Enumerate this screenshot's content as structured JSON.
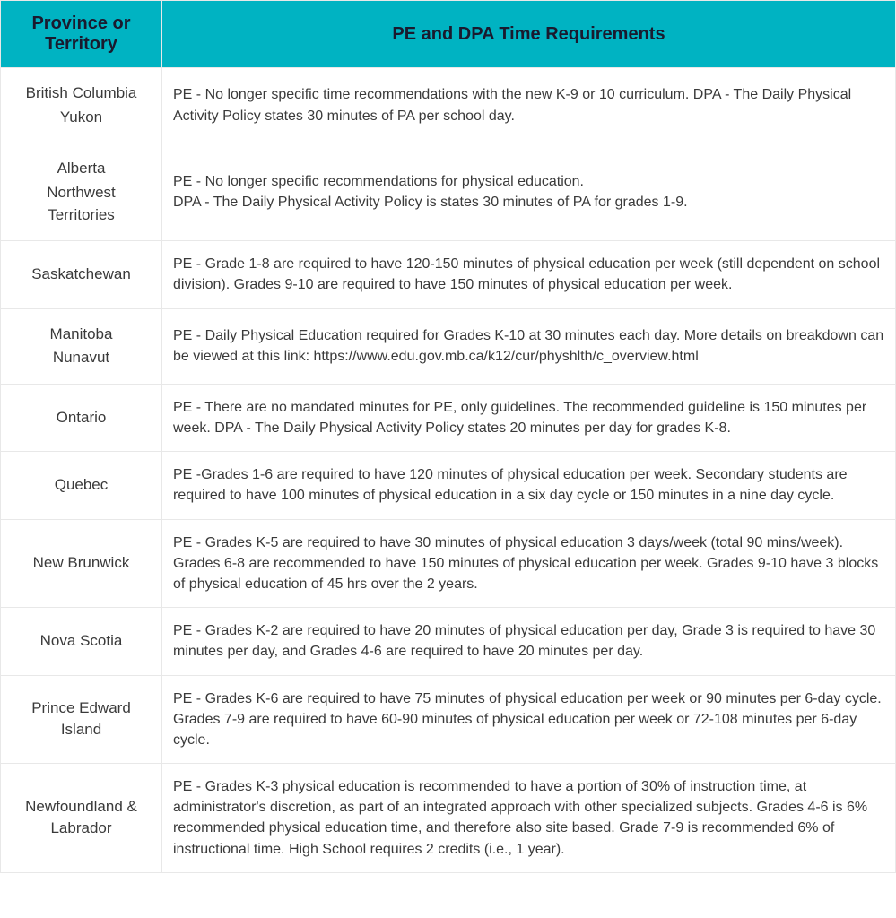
{
  "table": {
    "header_bg": "#00b3c2",
    "header_text_color": "#1a1a2e",
    "border_color": "#e8e8e8",
    "cell_text_color": "#3a3a3a",
    "columns": [
      "Province or Territory",
      "PE and DPA Time Requirements"
    ],
    "rows": [
      {
        "province_lines": [
          "British Columbia",
          "Yukon"
        ],
        "requirements": "PE - No longer specific time recommendations with the new K-9 or 10 curriculum. DPA - The Daily Physical Activity Policy states 30 minutes of PA per school day."
      },
      {
        "province_lines": [
          "Alberta",
          "Northwest Territories"
        ],
        "requirements": "PE - No longer specific recommendations for physical education.\nDPA - The Daily Physical Activity Policy is states 30 minutes of PA for grades 1-9."
      },
      {
        "province_lines": [
          "Saskatchewan"
        ],
        "requirements": "PE - Grade 1-8 are required to have 120-150 minutes of physical education per week (still dependent on school division). Grades 9-10 are required to have 150 minutes of physical education per week."
      },
      {
        "province_lines": [
          "Manitoba",
          "Nunavut"
        ],
        "requirements": "PE - Daily Physical Education required for Grades K-10 at 30 minutes each day. More details on breakdown can be viewed at this link: https://www.edu.gov.mb.ca/k12/cur/physhlth/c_overview.html"
      },
      {
        "province_lines": [
          "Ontario"
        ],
        "requirements": "PE - There are no mandated minutes for PE, only guidelines. The recommended guideline is 150 minutes per week. DPA - The Daily Physical Activity Policy states 20 minutes per day for grades K-8."
      },
      {
        "province_lines": [
          "Quebec"
        ],
        "requirements": "PE -Grades 1-6 are required to have 120 minutes of physical education per week. Secondary students are required to have 100 minutes of physical education in a six day cycle or 150 minutes in a nine day cycle."
      },
      {
        "province_lines": [
          "New Brunwick"
        ],
        "requirements": "PE - Grades K-5 are required to have 30 minutes of physical education 3 days/week (total 90 mins/week). Grades 6-8 are recommended to have 150 minutes of physical education per week. Grades 9-10 have 3 blocks of physical education of 45 hrs over the 2 years."
      },
      {
        "province_lines": [
          "Nova Scotia"
        ],
        "requirements": "PE - Grades K-2 are required to have 20 minutes of physical education per day, Grade 3 is required to have 30 minutes per day, and Grades 4-6 are required to have 20 minutes per day."
      },
      {
        "province_lines": [
          "Prince Edward Island"
        ],
        "requirements": "PE - Grades K-6 are required to have 75 minutes of physical education per week or 90 minutes per 6-day cycle.\nGrades 7-9 are required to have  60-90 minutes of physical education per week or 72-108 minutes per 6-day cycle."
      },
      {
        "province_lines": [
          "Newfoundland & Labrador"
        ],
        "requirements": "PE - Grades K-3 physical education is recommended to have a portion of 30% of instruction time, at administrator's discretion, as part of an integrated approach with other specialized subjects. Grades 4-6 is 6% recommended physical education time, and therefore also site based. Grade 7-9 is recommended 6% of instructional time. High School requires 2 credits (i.e., 1 year)."
      }
    ]
  }
}
